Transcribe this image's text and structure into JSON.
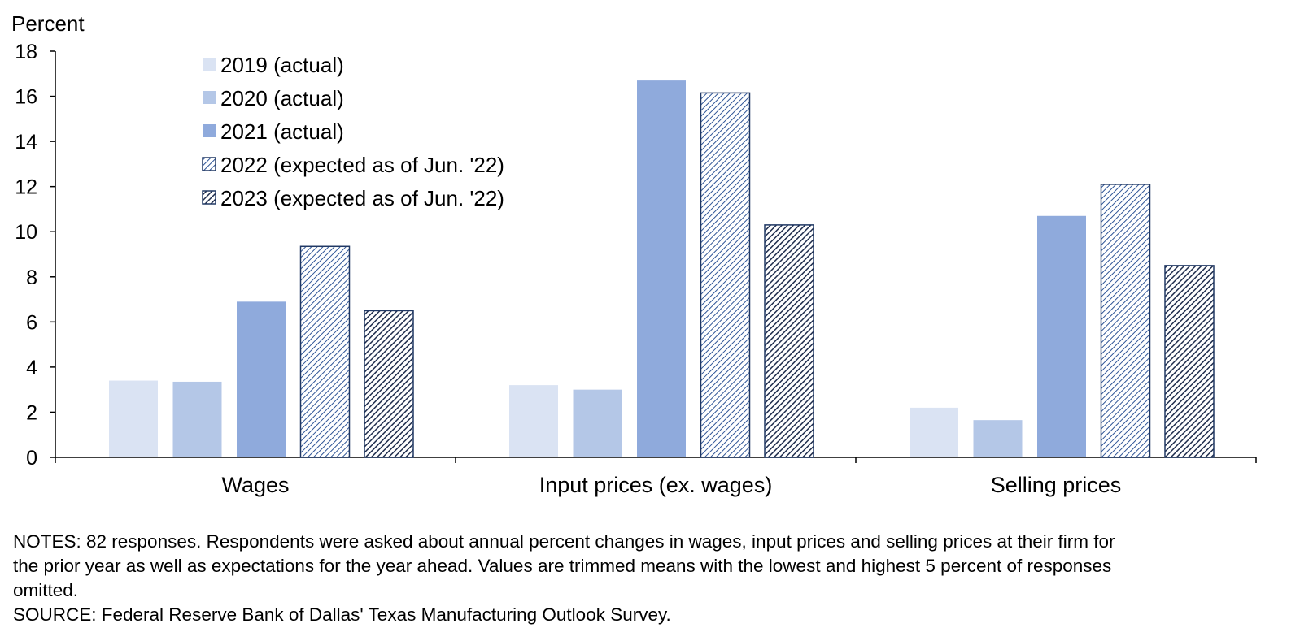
{
  "chart_data": {
    "type": "bar",
    "ylabel": "Percent",
    "ylim": [
      0,
      18
    ],
    "yticks": [
      0,
      2,
      4,
      6,
      8,
      10,
      12,
      14,
      16,
      18
    ],
    "categories": [
      "Wages",
      "Input prices (ex. wages)",
      "Selling prices"
    ],
    "series": [
      {
        "name": "2019 (actual)",
        "values": [
          3.4,
          3.2,
          2.2
        ],
        "color": "#dae3f3",
        "pattern": "solid"
      },
      {
        "name": "2020 (actual)",
        "values": [
          3.35,
          3.0,
          1.65
        ],
        "color": "#b4c7e7",
        "pattern": "solid"
      },
      {
        "name": "2021 (actual)",
        "values": [
          6.9,
          16.7,
          10.7
        ],
        "color": "#8faadc",
        "pattern": "solid"
      },
      {
        "name": "2022 (expected as of Jun. '22)",
        "values": [
          9.35,
          16.15,
          12.1
        ],
        "color": "#203864",
        "pattern": "light-hatch"
      },
      {
        "name": "2023 (expected as of Jun. '22)",
        "values": [
          6.5,
          10.3,
          8.5
        ],
        "color": "#203864",
        "pattern": "dark-hatch"
      }
    ],
    "legend_position": "top-left",
    "grid": false
  },
  "notes": {
    "line1": "NOTES: 82 responses. Respondents were asked about annual percent changes in wages, input prices and selling prices at their firm for",
    "line2": "the prior year as well as expectations for the year ahead. Values are trimmed means with the lowest and highest 5 percent of responses",
    "line3": "omitted.",
    "source": "SOURCE: Federal Reserve Bank of Dallas' Texas Manufacturing Outlook Survey."
  }
}
